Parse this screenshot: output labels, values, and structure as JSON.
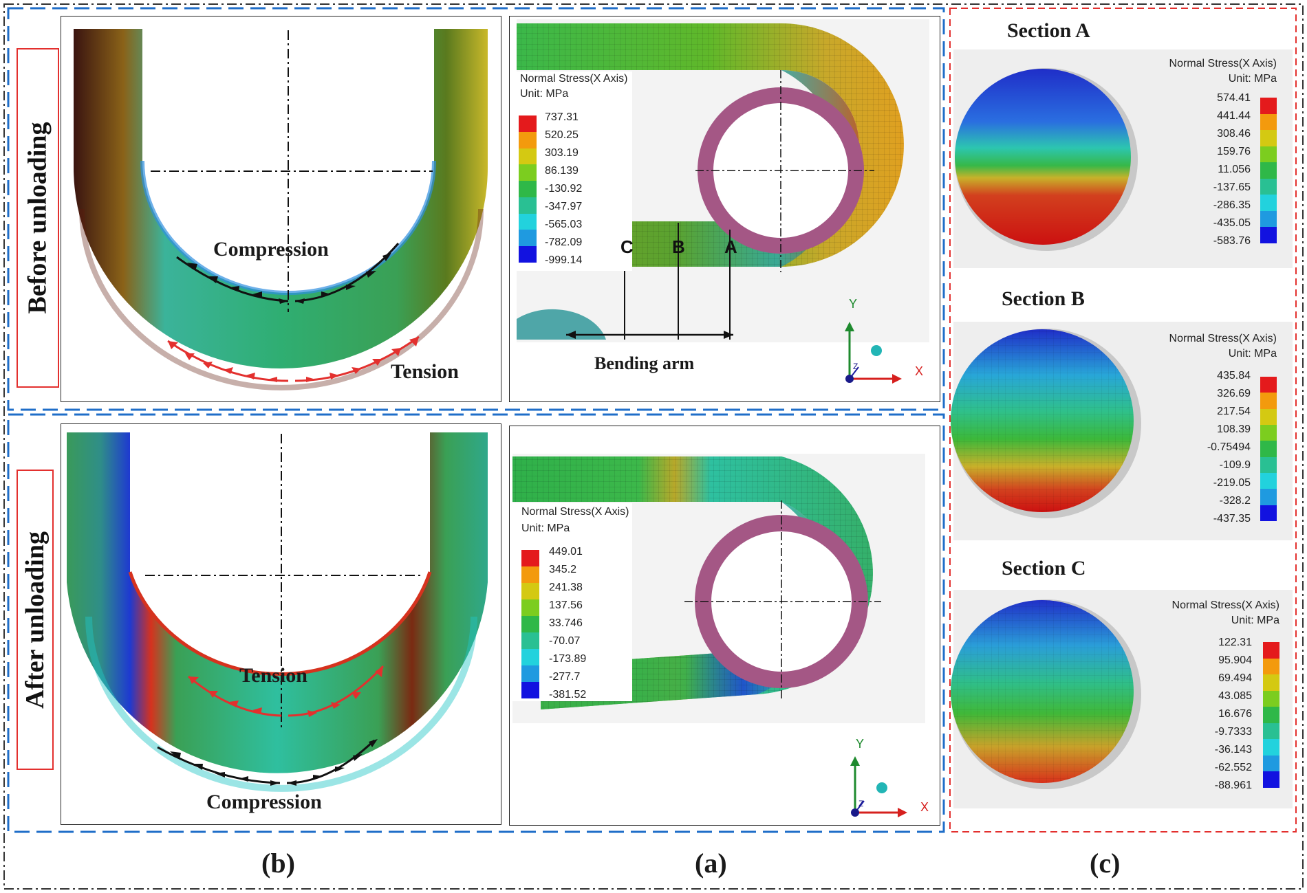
{
  "panel_labels": {
    "b": "(b)",
    "a": "(a)",
    "c": "(c)"
  },
  "rows": {
    "top": "Before unloading",
    "bottom": "After unloading"
  },
  "annotations": {
    "top_compression": "Compression",
    "top_tension": "Tension",
    "bottom_tension": "Tension",
    "bottom_compression": "Compression",
    "bending_arm": "Bending arm",
    "marker_c": "C",
    "marker_b": "B",
    "marker_a": "A"
  },
  "axes": {
    "y": "Y",
    "x": "X",
    "z": "Z"
  },
  "legend_colors": [
    "#e41a1c",
    "#f39a0d",
    "#d4c912",
    "#7ccd1f",
    "#2fb848",
    "#29c093",
    "#22d2dd",
    "#1f9ae0",
    "#1212e0"
  ],
  "legends": {
    "top_main": {
      "title": "Normal Stress(X Axis)",
      "unit": "Unit: MPa",
      "values": [
        "737.31",
        "520.25",
        "303.19",
        "86.139",
        "-130.92",
        "-347.97",
        "-565.03",
        "-782.09",
        "-999.14"
      ]
    },
    "bottom_main": {
      "title": "Normal Stress(X Axis)",
      "unit": "Unit: MPa",
      "values": [
        "449.01",
        "345.2",
        "241.38",
        "137.56",
        "33.746",
        "-70.07",
        "-173.89",
        "-277.7",
        "-381.52"
      ]
    },
    "section_a": {
      "title": "Normal Stress(X Axis)",
      "unit": "Unit: MPa",
      "values": [
        "574.41",
        "441.44",
        "308.46",
        "159.76",
        "11.056",
        "-137.65",
        "-286.35",
        "-435.05",
        "-583.76"
      ]
    },
    "section_b": {
      "title": "Normal Stress(X Axis)",
      "unit": "Unit: MPa",
      "values": [
        "435.84",
        "326.69",
        "217.54",
        "108.39",
        "-0.75494",
        "-109.9",
        "-219.05",
        "-328.2",
        "-437.35"
      ]
    },
    "section_c": {
      "title": "Normal Stress(X Axis)",
      "unit": "Unit: MPa",
      "values": [
        "122.31",
        "95.904",
        "69.494",
        "43.085",
        "16.676",
        "-9.7333",
        "-36.143",
        "-62.552",
        "-88.961"
      ]
    }
  },
  "sections": {
    "a": "Section A",
    "b": "Section B",
    "c": "Section C"
  }
}
